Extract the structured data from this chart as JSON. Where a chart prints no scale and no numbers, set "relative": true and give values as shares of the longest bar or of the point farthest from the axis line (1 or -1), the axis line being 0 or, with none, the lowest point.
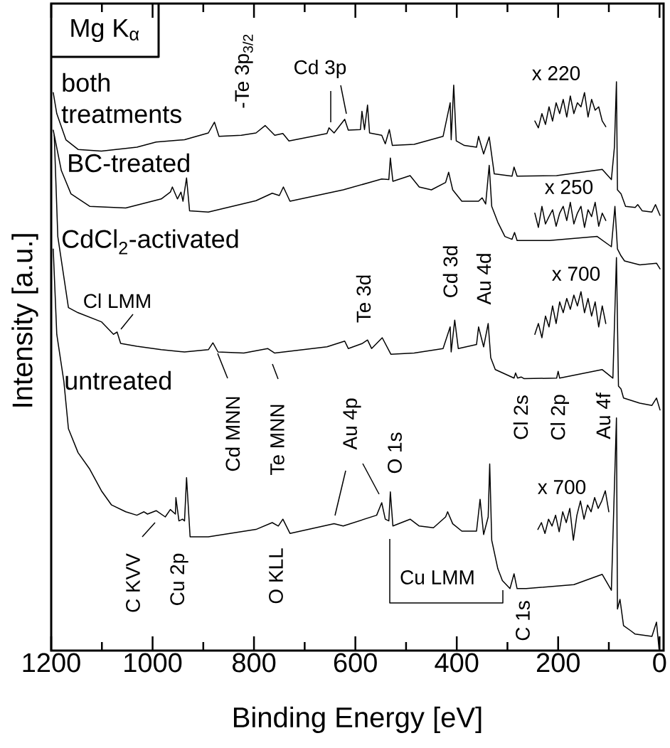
{
  "chart_data": {
    "type": "line",
    "relative": true,
    "xlabel": "Binding Energy [eV]",
    "ylabel": "Intensity [a.u.]",
    "xlim": [
      1200,
      -8
    ],
    "xticks": [
      0,
      200,
      400,
      600,
      800,
      1000,
      1200
    ],
    "series": [
      {
        "name": "both treatments",
        "color": "#000000",
        "x": [
          1196,
          1189,
          1171,
          1147,
          1101,
          1031,
          993,
          937,
          890,
          878,
          869,
          825,
          796,
          778,
          759,
          743,
          731,
          656,
          652,
          642,
          621,
          614,
          590,
          587,
          582,
          576,
          572,
          548,
          541,
          533,
          527,
          484,
          427,
          413,
          411,
          406,
          401,
          385,
          361,
          357,
          347,
          336,
          326,
          291,
          287,
          281,
          203,
          113,
          95,
          89,
          85,
          83,
          76,
          67,
          48,
          43,
          34,
          15,
          8,
          -1
        ],
        "values": [
          0.981,
          0.944,
          0.898,
          0.881,
          0.878,
          0.885,
          0.894,
          0.898,
          0.91,
          0.929,
          0.904,
          0.906,
          0.91,
          0.923,
          0.906,
          0.909,
          0.896,
          0.909,
          0.919,
          0.91,
          0.934,
          0.915,
          0.916,
          0.948,
          0.916,
          0.959,
          0.91,
          0.906,
          0.891,
          0.916,
          0.888,
          0.89,
          0.904,
          0.963,
          0.898,
          0.994,
          0.896,
          0.888,
          0.885,
          0.904,
          0.873,
          0.903,
          0.838,
          0.834,
          0.85,
          0.834,
          0.835,
          0.846,
          0.828,
          0.885,
          1.0,
          0.81,
          0.803,
          0.781,
          0.779,
          0.784,
          0.773,
          0.771,
          0.784,
          0.765
        ]
      },
      {
        "name": "BC-treated",
        "color": "#000000",
        "x": [
          1196,
          1180,
          1161,
          1124,
          1053,
          983,
          965,
          961,
          951,
          944,
          940,
          933,
          927,
          890,
          796,
          764,
          750,
          742,
          729,
          624,
          548,
          534,
          531,
          526,
          492,
          474,
          450,
          422,
          416,
          408,
          390,
          357,
          350,
          343,
          336,
          331,
          319,
          305,
          291,
          286,
          281,
          217,
          123,
          95,
          88,
          83,
          76,
          69,
          39,
          6,
          -1
        ],
        "values": [
          0.915,
          0.844,
          0.803,
          0.781,
          0.778,
          0.794,
          0.806,
          0.815,
          0.794,
          0.806,
          0.79,
          0.831,
          0.773,
          0.771,
          0.791,
          0.804,
          0.8,
          0.815,
          0.79,
          0.81,
          0.829,
          0.828,
          0.866,
          0.825,
          0.835,
          0.815,
          0.81,
          0.823,
          0.841,
          0.81,
          0.79,
          0.79,
          0.796,
          0.785,
          0.853,
          0.781,
          0.753,
          0.728,
          0.723,
          0.735,
          0.721,
          0.721,
          0.728,
          0.71,
          0.781,
          0.706,
          0.694,
          0.685,
          0.678,
          0.681,
          0.671
        ]
      },
      {
        "name": "CdCl$_{2}$-activated",
        "color": "#000000",
        "x": [
          1194,
          1187,
          1166,
          1147,
          1101,
          1077,
          1070,
          1063,
          1031,
          983,
          937,
          890,
          881,
          871,
          820,
          773,
          759,
          656,
          621,
          614,
          586,
          576,
          568,
          547,
          530,
          484,
          427,
          413,
          411,
          404,
          397,
          361,
          357,
          347,
          338,
          333,
          324,
          287,
          284,
          280,
          273,
          267,
          203,
          200,
          197,
          113,
          92,
          85,
          81,
          76,
          71,
          39,
          15,
          6,
          -1
        ],
        "values": [
          0.906,
          0.728,
          0.603,
          0.594,
          0.578,
          0.556,
          0.56,
          0.54,
          0.535,
          0.529,
          0.525,
          0.529,
          0.541,
          0.525,
          0.523,
          0.531,
          0.523,
          0.534,
          0.544,
          0.531,
          0.54,
          0.546,
          0.531,
          0.55,
          0.521,
          0.523,
          0.531,
          0.569,
          0.525,
          0.581,
          0.531,
          0.538,
          0.569,
          0.534,
          0.575,
          0.515,
          0.494,
          0.479,
          0.488,
          0.479,
          0.481,
          0.478,
          0.479,
          0.491,
          0.479,
          0.494,
          0.479,
          0.691,
          0.465,
          0.46,
          0.444,
          0.435,
          0.431,
          0.444,
          0.423
        ]
      },
      {
        "name": "untreated",
        "color": "#000000",
        "x": [
          1196,
          1189,
          1175,
          1166,
          1147,
          1124,
          1101,
          1081,
          1053,
          1031,
          1017,
          1010,
          993,
          975,
          965,
          955,
          954,
          948,
          941,
          937,
          933,
          926,
          890,
          796,
          764,
          752,
          743,
          729,
          642,
          624,
          558,
          548,
          541,
          534,
          531,
          526,
          492,
          474,
          446,
          422,
          418,
          408,
          390,
          361,
          354,
          347,
          338,
          335,
          331,
          319,
          310,
          295,
          287,
          281,
          263,
          169,
          113,
          95,
          85,
          83,
          78,
          71,
          57,
          48,
          15,
          6,
          1
        ],
        "values": [
          0.706,
          0.556,
          0.473,
          0.39,
          0.348,
          0.319,
          0.281,
          0.256,
          0.244,
          0.238,
          0.244,
          0.24,
          0.246,
          0.235,
          0.248,
          0.24,
          0.269,
          0.228,
          0.231,
          0.228,
          0.304,
          0.2,
          0.2,
          0.213,
          0.225,
          0.219,
          0.231,
          0.206,
          0.223,
          0.219,
          0.238,
          0.26,
          0.231,
          0.228,
          0.279,
          0.219,
          0.231,
          0.219,
          0.216,
          0.235,
          0.244,
          0.223,
          0.21,
          0.21,
          0.266,
          0.204,
          0.235,
          0.328,
          0.194,
          0.144,
          0.123,
          0.109,
          0.135,
          0.109,
          0.109,
          0.116,
          0.134,
          0.106,
          0.409,
          0.073,
          0.09,
          0.044,
          0.035,
          0.029,
          0.025,
          0.05,
          0.003
        ]
      },
      {
        "color": "#000000",
        "x": [
          246,
          239,
          232,
          225,
          218,
          211,
          204,
          197,
          190,
          183,
          176,
          169,
          162,
          155,
          148,
          141,
          134,
          127,
          120,
          113,
          106
        ],
        "values": [
          0.931,
          0.919,
          0.944,
          0.925,
          0.956,
          0.931,
          0.963,
          0.944,
          0.969,
          0.938,
          0.975,
          0.944,
          0.963,
          0.956,
          0.981,
          0.938,
          0.969,
          0.95,
          0.956,
          0.931,
          0.921
        ]
      },
      {
        "color": "#000000",
        "x": [
          246,
          239,
          232,
          225,
          218,
          211,
          204,
          197,
          190,
          183,
          176,
          169,
          162,
          155,
          148,
          141,
          134,
          127,
          120,
          113,
          106
        ],
        "values": [
          0.769,
          0.744,
          0.781,
          0.75,
          0.763,
          0.775,
          0.746,
          0.769,
          0.781,
          0.756,
          0.788,
          0.75,
          0.769,
          0.781,
          0.744,
          0.775,
          0.763,
          0.788,
          0.746,
          0.769,
          0.756
        ]
      },
      {
        "color": "#000000",
        "x": [
          246,
          239,
          232,
          225,
          218,
          211,
          204,
          197,
          190,
          183,
          176,
          169,
          162,
          155,
          148,
          141,
          134,
          127,
          120,
          113,
          106
        ],
        "values": [
          0.556,
          0.575,
          0.55,
          0.588,
          0.569,
          0.606,
          0.575,
          0.613,
          0.594,
          0.619,
          0.6,
          0.625,
          0.606,
          0.631,
          0.594,
          0.619,
          0.588,
          0.613,
          0.569,
          0.606,
          0.575
        ]
      },
      {
        "color": "#000000",
        "x": [
          240,
          233,
          226,
          219,
          212,
          205,
          198,
          191,
          184,
          177,
          170,
          163,
          156,
          149,
          142,
          135,
          128,
          121,
          114,
          107,
          100
        ],
        "values": [
          0.213,
          0.225,
          0.206,
          0.231,
          0.219,
          0.238,
          0.209,
          0.244,
          0.225,
          0.25,
          0.194,
          0.238,
          0.263,
          0.231,
          0.256,
          0.244,
          0.269,
          0.25,
          0.263,
          0.281,
          0.244
        ]
      }
    ],
    "annotations": [
      "Mg K$_{α}$",
      "-Te 3p$_{3/2}$",
      "Cd 3p",
      "x 220",
      "x 250",
      "Cl LMM",
      "Te 3d",
      "Cd 3d",
      "Au 4d",
      "x 700",
      "Cd MNN",
      "Te MNN",
      "Au 4p",
      "O 1s",
      "Cl 2s",
      "Cl 2p",
      "Au 4f",
      "x 700",
      "C KVV",
      "Cu 2p",
      "O KLL",
      "Cu LMM",
      "C 1s"
    ]
  }
}
